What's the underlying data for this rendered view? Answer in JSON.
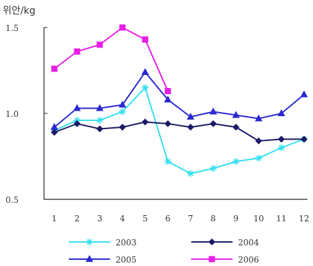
{
  "chart_data": {
    "type": "line",
    "ylabel": "위안/kg",
    "x": [
      "1",
      "2",
      "3",
      "4",
      "5",
      "6",
      "7",
      "8",
      "9",
      "10",
      "11",
      "12"
    ],
    "ylim": [
      0.5,
      1.5
    ],
    "yticks": [
      "0.5",
      "1.0",
      "1.5"
    ],
    "grid": false,
    "legend": "bottom",
    "series": [
      {
        "name": "2003",
        "color": "#33e0f0",
        "marker": "star",
        "values": [
          0.9,
          0.96,
          0.96,
          1.01,
          1.15,
          0.72,
          0.65,
          0.68,
          0.72,
          0.74,
          0.8,
          0.85
        ]
      },
      {
        "name": "2004",
        "color": "#1a1a66",
        "marker": "diamond",
        "values": [
          0.89,
          0.94,
          0.91,
          0.92,
          0.95,
          0.94,
          0.92,
          0.94,
          0.92,
          0.84,
          0.85,
          0.85
        ]
      },
      {
        "name": "2005",
        "color": "#2a2ad0",
        "marker": "triangle",
        "values": [
          0.92,
          1.03,
          1.03,
          1.05,
          1.24,
          1.08,
          0.98,
          1.01,
          0.99,
          0.97,
          1.0,
          1.11
        ]
      },
      {
        "name": "2006",
        "color": "#e61ee6",
        "marker": "square",
        "values": [
          1.26,
          1.36,
          1.4,
          1.5,
          1.43,
          1.13,
          null,
          null,
          null,
          null,
          null,
          null
        ]
      }
    ]
  }
}
